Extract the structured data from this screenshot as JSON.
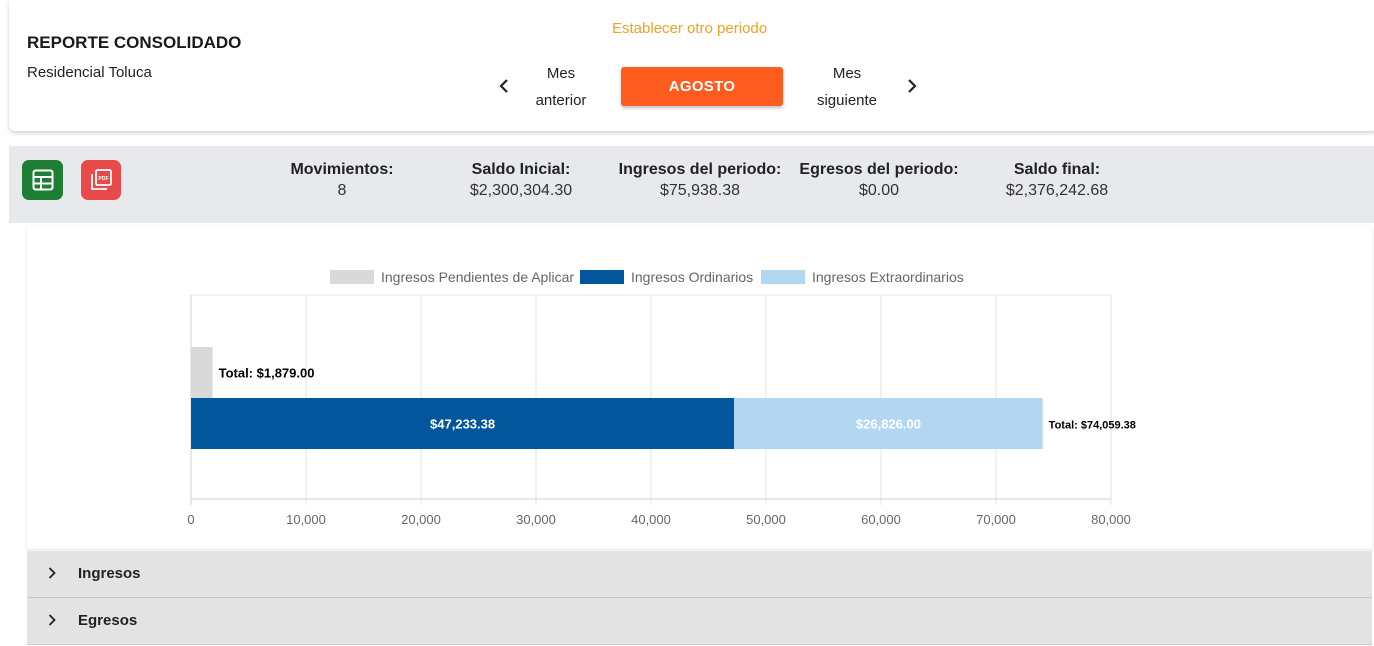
{
  "header": {
    "title": "REPORTE CONSOLIDADO",
    "subtitle": "Residencial Toluca",
    "period_link": "Establecer otro periodo",
    "prev_label_line1": "Mes",
    "prev_label_line2": "anterior",
    "next_label_line1": "Mes",
    "next_label_line2": "siguiente",
    "month": "AGOSTO"
  },
  "summary": {
    "icons": {
      "excel": "spreadsheet-icon",
      "pdf": "pdf-icon"
    },
    "stats": [
      {
        "label": "Movimientos:",
        "value": "8"
      },
      {
        "label": "Saldo Inicial:",
        "value": "$2,300,304.30"
      },
      {
        "label": "Ingresos del periodo:",
        "value": "$75,938.38"
      },
      {
        "label": "Egresos del periodo:",
        "value": "$0.00"
      },
      {
        "label": "Saldo final:",
        "value": "$2,376,242.68"
      }
    ]
  },
  "chart_data": {
    "type": "bar",
    "orientation": "horizontal",
    "stacked": true,
    "xlim": [
      0,
      80000
    ],
    "x_ticks": [
      "0",
      "10,000",
      "20,000",
      "30,000",
      "40,000",
      "50,000",
      "60,000",
      "70,000",
      "80,000"
    ],
    "grid": true,
    "legend_position": "top",
    "series": [
      {
        "name": "Ingresos Pendientes de Aplicar",
        "color": "#d9d9d9",
        "values": [
          1879,
          0
        ]
      },
      {
        "name": "Ingresos Ordinarios",
        "color": "#02569b",
        "values": [
          0,
          47233.38
        ]
      },
      {
        "name": "Ingresos Extraordinarios",
        "color": "#b3d7f0",
        "values": [
          0,
          26826
        ]
      }
    ],
    "segment_labels": [
      "",
      "$47,233.38",
      "$26,826.00"
    ],
    "totals": [
      "Total: $1,879.00",
      "Total: $74,059.38"
    ]
  },
  "accordion": [
    {
      "label": "Ingresos"
    },
    {
      "label": "Egresos"
    }
  ]
}
